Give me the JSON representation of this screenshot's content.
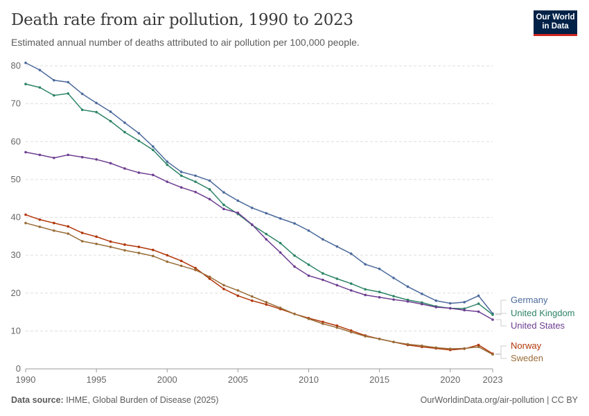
{
  "header": {
    "title": "Death rate from air pollution, 1990 to 2023",
    "subtitle": "Estimated annual number of deaths attributed to air pollution per 100,000 people.",
    "logo": "Our World in Data"
  },
  "footer": {
    "source_label": "Data source:",
    "source": "IHME, Global Burden of Disease (2025)",
    "right": "OurWorldinData.org/air-pollution | CC BY"
  },
  "chart_data": {
    "type": "line",
    "title": "Death rate from air pollution, 1990 to 2023",
    "xlim": [
      1990,
      2023
    ],
    "ylim": [
      0,
      80
    ],
    "xticks": [
      1990,
      1995,
      2000,
      2005,
      2010,
      2015,
      2020,
      2023
    ],
    "yticks": [
      0,
      10,
      20,
      30,
      40,
      50,
      60,
      70,
      80
    ],
    "grid": "horizontal dashed",
    "legend": "right (line-end labels)",
    "x": [
      1990,
      1991,
      1992,
      1993,
      1994,
      1995,
      1996,
      1997,
      1998,
      1999,
      2000,
      2001,
      2002,
      2003,
      2004,
      2005,
      2006,
      2007,
      2008,
      2009,
      2010,
      2011,
      2012,
      2013,
      2014,
      2015,
      2016,
      2017,
      2018,
      2019,
      2020,
      2021,
      2022,
      2023
    ],
    "series": [
      {
        "name": "Germany",
        "color": "#4c6a9c",
        "values": [
          80.8,
          78.9,
          76.2,
          75.7,
          72.6,
          70.2,
          67.9,
          65.0,
          62.2,
          58.7,
          54.7,
          52.0,
          51.0,
          49.7,
          46.6,
          44.4,
          42.5,
          41.1,
          39.7,
          38.4,
          36.5,
          34.2,
          32.3,
          30.4,
          27.6,
          26.4,
          24.0,
          21.7,
          19.8,
          18.0,
          17.3,
          17.6,
          19.3,
          14.6
        ]
      },
      {
        "name": "United Kingdom",
        "color": "#2c8465",
        "values": [
          75.2,
          74.3,
          72.2,
          72.7,
          68.4,
          67.8,
          65.4,
          62.5,
          60.2,
          57.8,
          53.9,
          51.0,
          49.4,
          47.4,
          43.3,
          40.9,
          38.0,
          35.6,
          33.2,
          29.9,
          27.5,
          25.2,
          23.8,
          22.5,
          21.0,
          20.3,
          19.2,
          18.2,
          17.5,
          16.5,
          16.0,
          15.9,
          17.2,
          14.3
        ]
      },
      {
        "name": "United States",
        "color": "#6d3e91",
        "values": [
          57.2,
          56.5,
          55.7,
          56.5,
          55.9,
          55.3,
          54.3,
          52.9,
          51.8,
          51.2,
          49.4,
          47.9,
          46.7,
          44.8,
          42.2,
          41.2,
          38.1,
          34.2,
          30.7,
          27.0,
          24.6,
          23.5,
          22.1,
          20.7,
          19.5,
          18.9,
          18.3,
          17.8,
          17.1,
          16.3,
          16.0,
          15.5,
          15.1,
          13.0
        ]
      },
      {
        "name": "Norway",
        "color": "#b13507",
        "values": [
          40.7,
          39.4,
          38.5,
          37.6,
          35.9,
          34.9,
          33.6,
          32.8,
          32.2,
          31.4,
          30.0,
          28.5,
          26.6,
          23.8,
          21.1,
          19.3,
          18.0,
          17.0,
          15.8,
          14.5,
          13.4,
          12.4,
          11.4,
          10.1,
          8.8,
          7.9,
          7.1,
          6.3,
          5.8,
          5.4,
          5.0,
          5.3,
          6.3,
          4.0
        ]
      },
      {
        "name": "Sweden",
        "color": "#996d39",
        "values": [
          38.5,
          37.5,
          36.5,
          35.7,
          33.7,
          33.0,
          32.2,
          31.3,
          30.6,
          29.8,
          28.3,
          27.2,
          26.1,
          24.3,
          22.1,
          20.7,
          19.1,
          17.6,
          16.1,
          14.5,
          13.2,
          11.9,
          10.9,
          9.7,
          8.6,
          7.9,
          7.1,
          6.5,
          6.1,
          5.6,
          5.3,
          5.4,
          5.8,
          3.8
        ]
      }
    ]
  }
}
